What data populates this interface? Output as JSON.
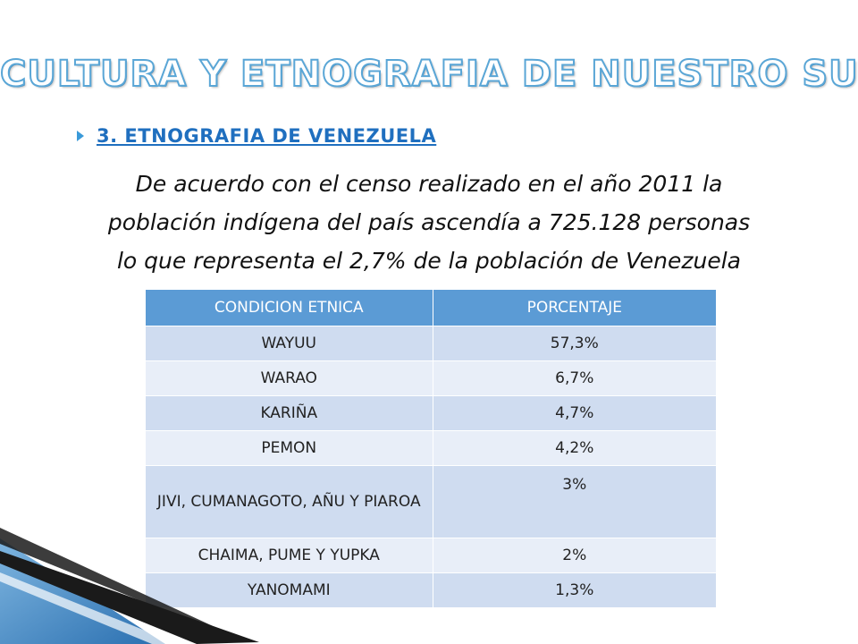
{
  "title": "CULTURA Y ETNOGRAFIA DE NUESTRO SUR",
  "section_heading": "3. ETNOGRAFIA DE VENEZUELA",
  "body_lines": [
    "De acuerdo con el censo realizado en el año 2011 la",
    "población indígena del país ascendía a 725.128 personas",
    "lo que representa el 2,7% de la población de Venezuela"
  ],
  "table": {
    "headers": [
      "CONDICION ETNICA",
      "PORCENTAJE"
    ],
    "rows": [
      [
        "WAYUU",
        "57,3%"
      ],
      [
        "WARAO",
        "6,7%"
      ],
      [
        "KARIÑA",
        "4,7%"
      ],
      [
        "PEMON",
        "4,2%"
      ],
      [
        "JIVI, CUMANAGOTO, AÑU Y PIAROA",
        "3%"
      ],
      [
        "CHAIMA, PUME Y YUPKA",
        "2%"
      ],
      [
        "YANOMAMI",
        "1,3%"
      ]
    ]
  },
  "colors": {
    "title_outline": "#5aa6d6",
    "heading": "#1f6fbf",
    "table_header": "#5b9bd5",
    "row_dark": "#cfdcf0",
    "row_light": "#e8eef8"
  }
}
